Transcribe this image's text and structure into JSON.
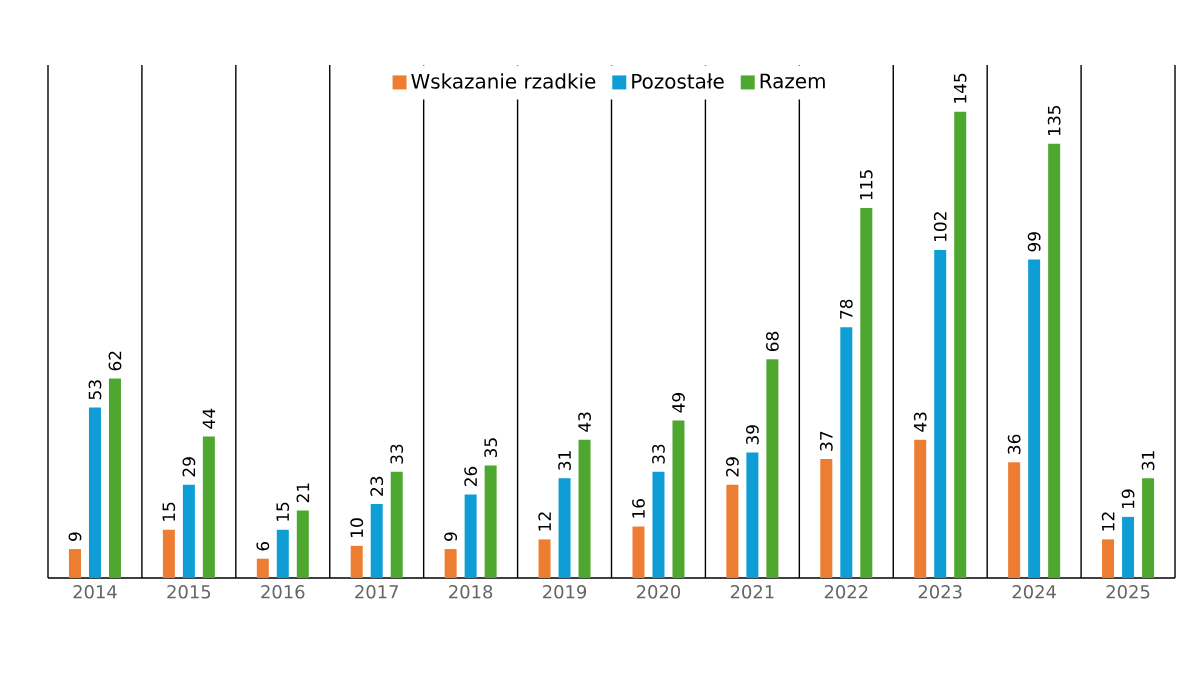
{
  "chart_data": {
    "type": "bar",
    "categories": [
      "2014",
      "2015",
      "2016",
      "2017",
      "2018",
      "2019",
      "2020",
      "2021",
      "2022",
      "2023",
      "2024",
      "2025"
    ],
    "series": [
      {
        "name": "Wskazanie rzadkie",
        "color": "#ed7d31",
        "values": [
          9,
          15,
          6,
          10,
          9,
          12,
          16,
          29,
          37,
          43,
          36,
          12
        ]
      },
      {
        "name": "Pozostałe",
        "color": "#0e9ed5",
        "values": [
          53,
          29,
          15,
          23,
          26,
          31,
          33,
          39,
          78,
          102,
          99,
          19
        ]
      },
      {
        "name": "Razem",
        "color": "#4ea72e",
        "values": [
          62,
          44,
          21,
          33,
          35,
          43,
          49,
          68,
          115,
          145,
          135,
          31
        ]
      }
    ],
    "data_labels": true,
    "legend": "top",
    "grid": "x"
  }
}
